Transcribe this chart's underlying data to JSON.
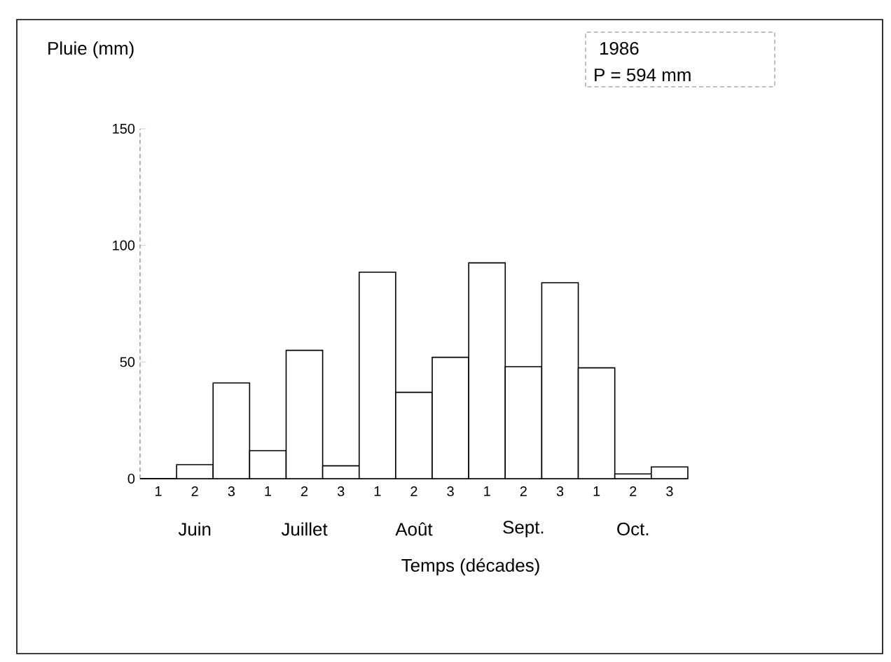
{
  "chart_data": {
    "type": "bar",
    "title": "1986",
    "subtitle": "P = 594 mm",
    "ylabel": "Pluie (mm)",
    "xlabel": "Temps (décades)",
    "categories": [
      "1",
      "2",
      "3",
      "1",
      "2",
      "3",
      "1",
      "2",
      "3",
      "1",
      "2",
      "3",
      "1",
      "2",
      "3"
    ],
    "values": [
      0,
      6,
      41,
      12,
      55,
      5.5,
      88.5,
      37,
      52,
      92.5,
      48,
      84,
      47.5,
      2,
      5
    ],
    "color": "#ffffff",
    "ylim": [
      0,
      150
    ],
    "yticks": [
      0,
      50,
      100,
      150
    ],
    "annotations": [
      "Juin",
      "Juillet",
      "Août",
      "Sept.",
      "Oct."
    ]
  }
}
